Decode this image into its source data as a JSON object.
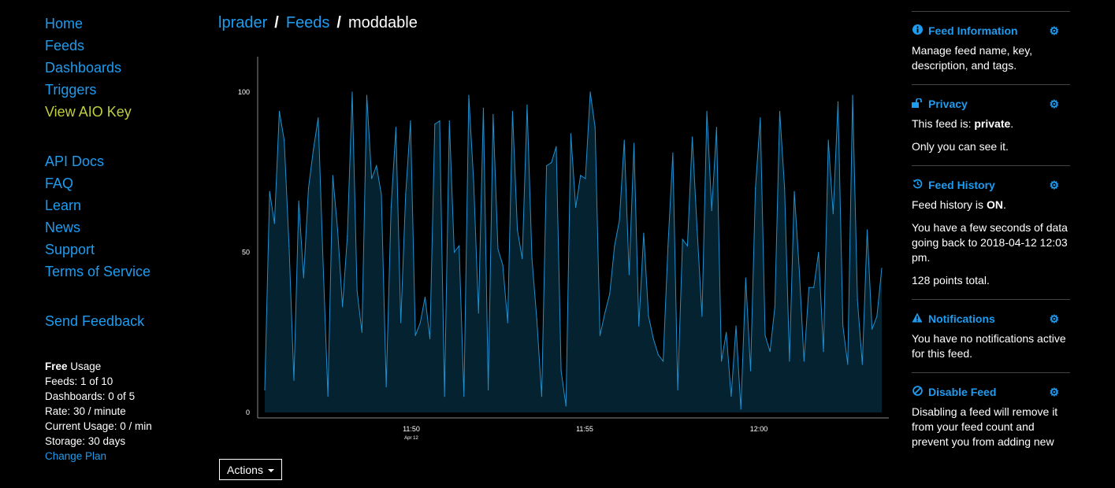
{
  "sidebar": {
    "nav": [
      "Home",
      "Feeds",
      "Dashboards",
      "Triggers"
    ],
    "aio_key": "View AIO Key",
    "help": [
      "API Docs",
      "FAQ",
      "Learn",
      "News",
      "Support",
      "Terms of Service"
    ],
    "feedback": "Send Feedback"
  },
  "usage": {
    "plan_bold": "Free",
    "plan_rest": " Usage",
    "feeds": "Feeds: 1 of 10",
    "dashboards": "Dashboards: 0 of 5",
    "rate": "Rate: 30 / minute",
    "current": "Current Usage: 0 / min",
    "storage": "Storage: 30 days",
    "change_plan": "Change Plan"
  },
  "breadcrumb": {
    "user": "lprader",
    "feeds": "Feeds",
    "feed": "moddable",
    "separator": "/"
  },
  "actions_label": "Actions",
  "panel": {
    "info": {
      "title": "Feed Information",
      "text": "Manage feed name, key, description, and tags."
    },
    "privacy": {
      "title": "Privacy",
      "line1_pre": "This feed is: ",
      "line1_bold": "private",
      "line1_post": ".",
      "line2": "Only you can see it."
    },
    "history": {
      "title": "Feed History",
      "line1_pre": "Feed history is ",
      "line1_bold": "ON",
      "line1_post": ".",
      "line2": "You have a few seconds of data going back to 2018-04-12 12:03 pm.",
      "line3": "128 points total."
    },
    "notifications": {
      "title": "Notifications",
      "text": "You have no notifications active for this feed."
    },
    "disable": {
      "title": "Disable Feed",
      "text": "Disabling a feed will remove it from your feed count and prevent you from adding new"
    }
  },
  "chart_data": {
    "type": "area",
    "ylim": [
      0,
      100
    ],
    "y_ticks": [
      0,
      50,
      100
    ],
    "x_ticks": [
      {
        "label": "11:50",
        "sub": "Apr 12"
      },
      {
        "label": "11:55",
        "sub": ""
      },
      {
        "label": "12:00",
        "sub": ""
      }
    ],
    "colors": {
      "line": "#1e90d0",
      "fill": "#04222f",
      "axis": "#888888"
    },
    "values": [
      7,
      69,
      59,
      94,
      85,
      52,
      10,
      66,
      42,
      70,
      82,
      92,
      47,
      5,
      74,
      57,
      33,
      55,
      100,
      38,
      25,
      99,
      73,
      77,
      68,
      8,
      64,
      89,
      28,
      68,
      91,
      24,
      28,
      36,
      23,
      90,
      91,
      5,
      91,
      50,
      52,
      5,
      99,
      72,
      31,
      95,
      7,
      93,
      51,
      46,
      28,
      94,
      57,
      48,
      96,
      48,
      29,
      5,
      77,
      78,
      83,
      13,
      2,
      87,
      64,
      74,
      73,
      100,
      89,
      24,
      31,
      37,
      52,
      60,
      85,
      43,
      84,
      27,
      56,
      30,
      23,
      18,
      16,
      52,
      81,
      7,
      54,
      52,
      86,
      57,
      30,
      94,
      63,
      89,
      16,
      25,
      5,
      27,
      1,
      42,
      13,
      70,
      92,
      24,
      19,
      33,
      94,
      70,
      16,
      69,
      45,
      16,
      39,
      39,
      50,
      19,
      85,
      62,
      97,
      27,
      15,
      99,
      35,
      15,
      57,
      26,
      30,
      45
    ]
  }
}
